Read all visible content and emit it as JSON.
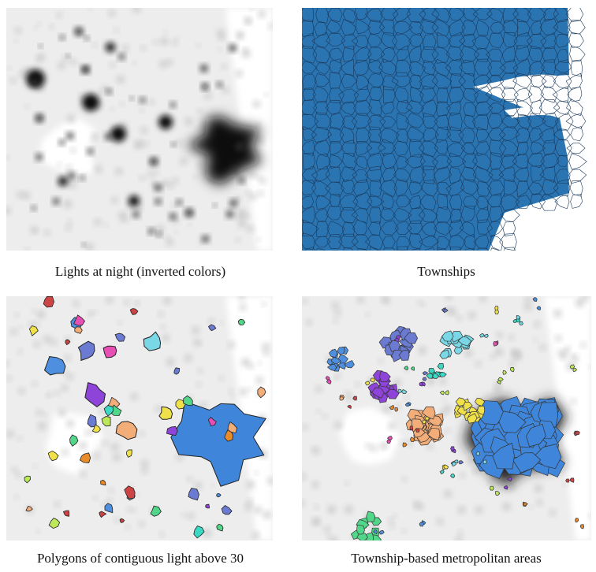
{
  "panels": [
    {
      "caption": "Lights at night (inverted colors)"
    },
    {
      "caption": "Townships"
    },
    {
      "caption": "Polygons of contiguous light above 30"
    },
    {
      "caption": "Township-based metropolitan areas"
    }
  ]
}
